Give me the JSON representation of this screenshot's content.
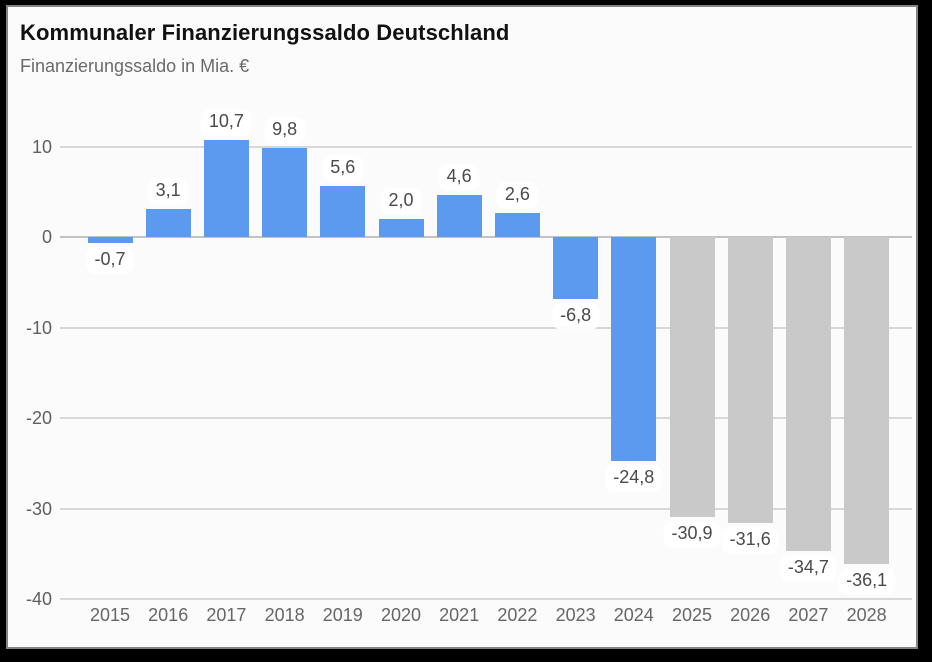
{
  "header": {
    "title": "Kommunaler Finanzierungssaldo Deutschland",
    "subtitle": "Finanzierungssaldo in Mia. €"
  },
  "chart_data": {
    "type": "bar",
    "title": "Kommunaler Finanzierungssaldo Deutschland",
    "subtitle": "Finanzierungssaldo in Mia. €",
    "xlabel": "",
    "ylabel": "Finanzierungssaldo in Mia. €",
    "categories": [
      "2015",
      "2016",
      "2017",
      "2018",
      "2019",
      "2020",
      "2021",
      "2022",
      "2023",
      "2024",
      "2025",
      "2026",
      "2027",
      "2028"
    ],
    "values": [
      -0.7,
      3.1,
      10.7,
      9.8,
      5.6,
      2.0,
      4.6,
      2.6,
      -6.8,
      -24.8,
      -30.9,
      -31.6,
      -34.7,
      -36.1
    ],
    "value_labels": [
      "-0,7",
      "3,1",
      "10,7",
      "9,8",
      "5,6",
      "2,0",
      "4,6",
      "2,6",
      "-6,8",
      "-24,8",
      "-30,9",
      "-31,6",
      "-34,7",
      "-36,1"
    ],
    "bar_color_group": [
      "blue",
      "blue",
      "blue",
      "blue",
      "blue",
      "blue",
      "blue",
      "blue",
      "blue",
      "blue",
      "gray",
      "gray",
      "gray",
      "gray"
    ],
    "y_ticks": [
      10,
      0,
      -10,
      -20,
      -30,
      -40
    ],
    "y_tick_labels": [
      "10",
      "0",
      "-10",
      "-20",
      "-30",
      "-40"
    ],
    "ylim": [
      -40,
      13
    ],
    "grid": "horizontal",
    "legend": "none",
    "colors": {
      "blue": "#5C9AF0",
      "gray": "#C9C9C9",
      "gridline": "#D8D8D8",
      "zero_line": "#C2C2C2",
      "tick_label": "#5F5F5F",
      "value_label": "#4A4A4A",
      "background": "#FBFBFB",
      "frame": "#000000"
    }
  }
}
